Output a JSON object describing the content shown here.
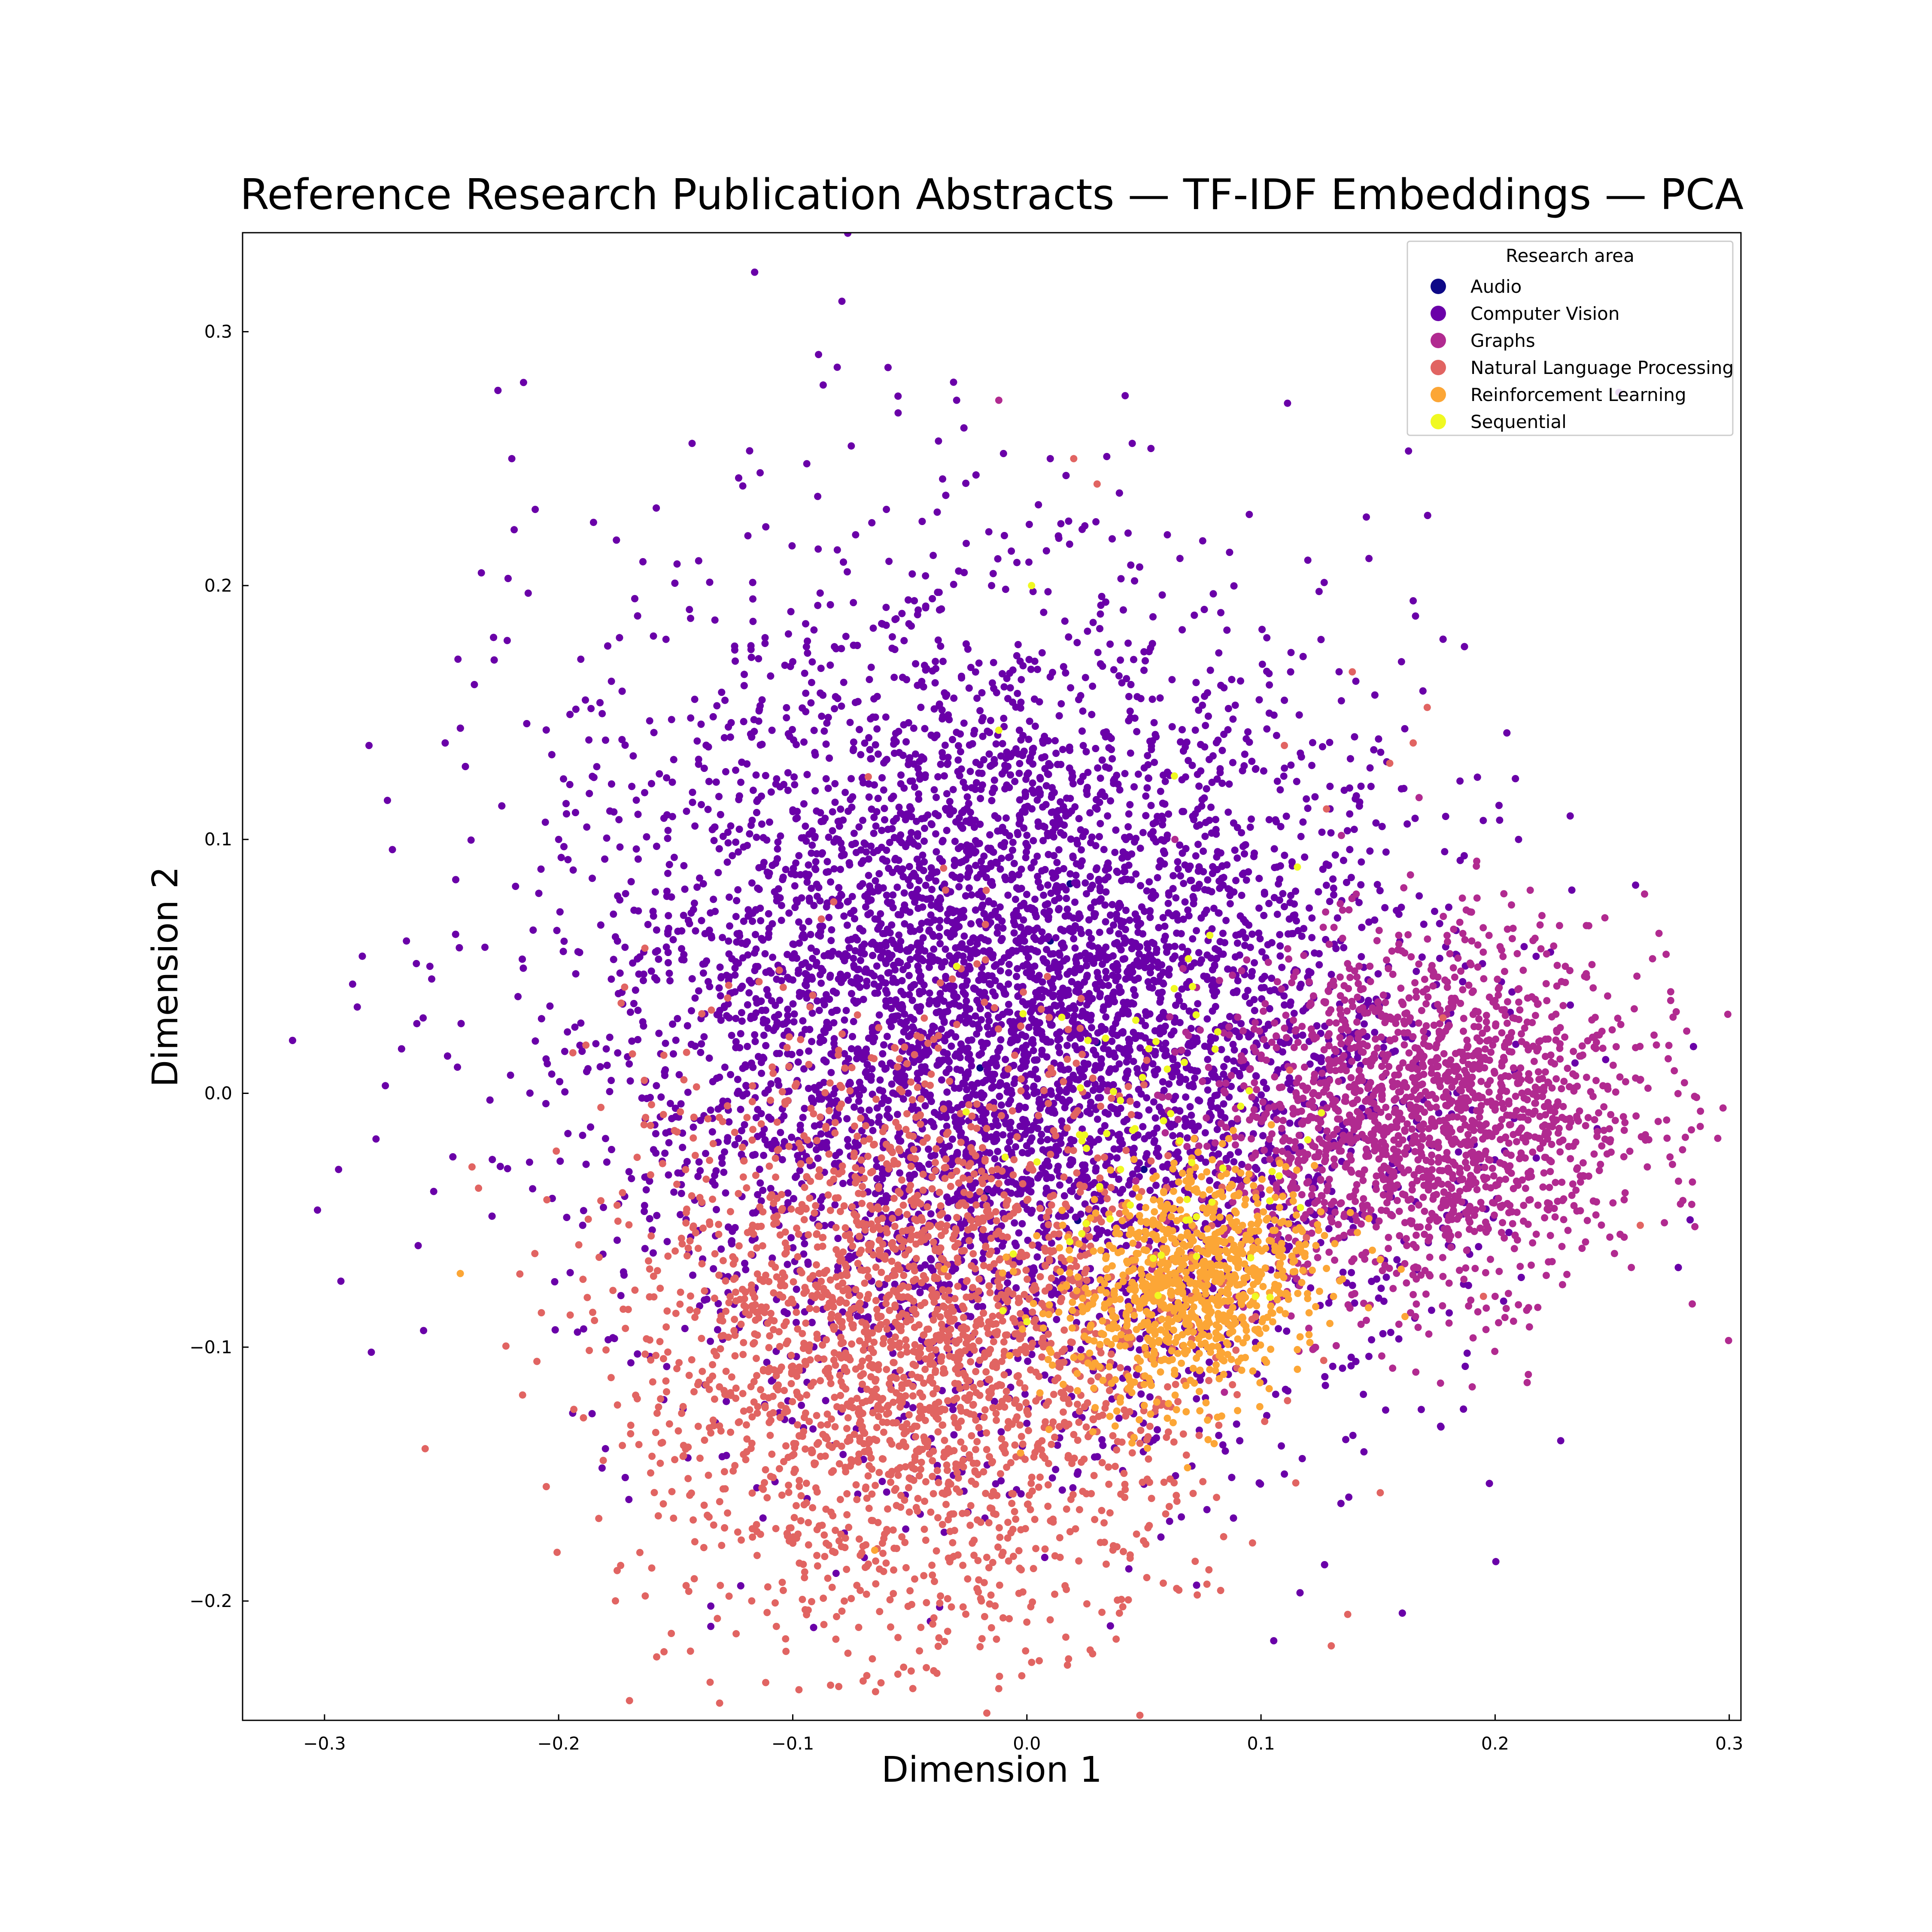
{
  "chart_data": {
    "type": "scatter",
    "title": "Reference Research Publication Abstracts — TF-IDF Embeddings — PCA",
    "xlabel": "Dimension 1",
    "ylabel": "Dimension 2",
    "xlim": [
      -0.335,
      0.305
    ],
    "ylim": [
      -0.247,
      0.339
    ],
    "xticks": [
      -0.3,
      -0.2,
      -0.1,
      0.0,
      0.1,
      0.2,
      0.3
    ],
    "xtick_labels": [
      "−0.3",
      "−0.2",
      "−0.1",
      "0.0",
      "0.1",
      "0.2",
      "0.3"
    ],
    "yticks": [
      -0.2,
      -0.1,
      0.0,
      0.1,
      0.2,
      0.3
    ],
    "ytick_labels": [
      "−0.2",
      "−0.1",
      "0.0",
      "0.1",
      "0.2",
      "0.3"
    ],
    "grid": false,
    "legend": {
      "title": "Research area",
      "placement": "top-right"
    },
    "series": [
      {
        "name": "Audio",
        "color": "#0d0887",
        "count": 5,
        "center": [
          0.0,
          0.0
        ],
        "spread": [
          0.05,
          0.05
        ],
        "rotation": 0,
        "points": [
          [
            -0.02,
            0.01
          ],
          [
            0.05,
            -0.03
          ],
          [
            0.01,
            0.06
          ],
          [
            -0.06,
            -0.02
          ],
          [
            0.03,
            0.02
          ]
        ]
      },
      {
        "name": "Computer Vision",
        "color": "#6a00a8",
        "count": 9000,
        "center": [
          -0.01,
          0.03
        ],
        "spread": [
          0.085,
          0.075
        ],
        "rotation": -0.35,
        "points": [
          [
            -0.303,
            -0.046
          ],
          [
            -0.294,
            -0.03
          ],
          [
            -0.293,
            -0.074
          ],
          [
            -0.288,
            0.043
          ],
          [
            -0.286,
            0.034
          ],
          [
            -0.281,
            0.137
          ],
          [
            -0.28,
            -0.102
          ],
          [
            -0.278,
            -0.018
          ],
          [
            -0.274,
            0.003
          ],
          [
            -0.271,
            0.096
          ],
          [
            -0.265,
            0.06
          ],
          [
            -0.26,
            -0.06
          ],
          [
            -0.255,
            0.05
          ],
          [
            -0.243,
            0.171
          ],
          [
            -0.236,
            0.161
          ],
          [
            -0.233,
            0.205
          ],
          [
            -0.22,
            0.25
          ],
          [
            -0.219,
            0.222
          ],
          [
            -0.215,
            0.28
          ],
          [
            -0.213,
            0.197
          ],
          [
            -0.21,
            0.23
          ],
          [
            -0.2,
            0.1
          ],
          [
            -0.194,
            -0.126
          ],
          [
            -0.18,
            -0.14
          ],
          [
            -0.17,
            -0.16
          ],
          [
            -0.143,
            0.256
          ],
          [
            -0.135,
            -0.202
          ],
          [
            -0.135,
            -0.21
          ],
          [
            -0.1,
            0.17
          ],
          [
            -0.094,
            0.248
          ],
          [
            -0.089,
            0.291
          ],
          [
            -0.087,
            0.279
          ],
          [
            -0.081,
            0.286
          ],
          [
            -0.079,
            0.312
          ],
          [
            -0.075,
            0.255
          ],
          [
            -0.06,
            0.23
          ],
          [
            -0.055,
            0.268
          ],
          [
            -0.036,
            0.242
          ],
          [
            -0.03,
            0.273
          ],
          [
            -0.01,
            0.252
          ],
          [
            0.01,
            0.25
          ],
          [
            0.045,
            0.256
          ],
          [
            0.053,
            0.254
          ],
          [
            0.06,
            0.22
          ],
          [
            0.095,
            0.228
          ],
          [
            0.12,
            0.21
          ],
          [
            0.145,
            0.227
          ],
          [
            0.163,
            0.253
          ],
          [
            0.165,
            0.194
          ],
          [
            0.166,
            0.188
          ],
          [
            0.185,
            0.123
          ],
          [
            0.21,
            0.1
          ],
          [
            0.26,
            0.082
          ],
          [
            0.16,
            0.17
          ],
          [
            0.11,
            -0.15
          ],
          [
            0.05,
            -0.154
          ],
          [
            0.0,
            -0.13
          ]
        ]
      },
      {
        "name": "Graphs",
        "color": "#b12a90",
        "count": 1800,
        "center": [
          0.17,
          -0.01
        ],
        "spread": [
          0.045,
          0.035
        ],
        "rotation": 0.15,
        "points": [
          [
            0.275,
            0.04
          ],
          [
            0.276,
            0.03
          ],
          [
            0.27,
            0.063
          ],
          [
            0.265,
            -0.029
          ],
          [
            0.26,
            0.018
          ],
          [
            0.255,
            -0.025
          ],
          [
            0.25,
            0.025
          ],
          [
            0.245,
            -0.028
          ],
          [
            0.24,
            0.066
          ],
          [
            0.235,
            -0.01
          ],
          [
            0.23,
            0.05
          ],
          [
            0.225,
            0.058
          ],
          [
            0.22,
            0.07
          ],
          [
            0.215,
            0.08
          ],
          [
            -0.012,
            0.273
          ],
          [
            0.2,
            -0.08
          ],
          [
            0.19,
            0.06
          ],
          [
            0.18,
            -0.05
          ],
          [
            0.26,
            0.006
          ]
        ]
      },
      {
        "name": "Natural Language Processing",
        "color": "#e16462",
        "count": 2500,
        "center": [
          -0.05,
          -0.1
        ],
        "spread": [
          0.06,
          0.055
        ],
        "rotation": -0.6,
        "points": [
          [
            -0.257,
            -0.14
          ],
          [
            -0.237,
            -0.029
          ],
          [
            -0.175,
            -0.188
          ],
          [
            -0.163,
            -0.198
          ],
          [
            -0.155,
            -0.22
          ],
          [
            -0.107,
            -0.21
          ],
          [
            -0.079,
            -0.204
          ],
          [
            -0.078,
            -0.2
          ],
          [
            -0.02,
            -0.218
          ],
          [
            0.171,
            0.152
          ],
          [
            0.165,
            0.138
          ],
          [
            0.155,
            0.13
          ],
          [
            0.139,
            0.166
          ],
          [
            0.128,
            0.112
          ],
          [
            0.11,
            0.137
          ],
          [
            0.02,
            0.25
          ],
          [
            0.03,
            0.24
          ],
          [
            0.262,
            -0.052
          ],
          [
            0.195,
            -0.08
          ]
        ]
      },
      {
        "name": "Reinforcement Learning",
        "color": "#fca636",
        "count": 900,
        "center": [
          0.07,
          -0.075
        ],
        "spread": [
          0.028,
          0.022
        ],
        "rotation": 0.4,
        "points": [
          [
            -0.242,
            -0.071
          ],
          [
            0.115,
            -0.062
          ],
          [
            0.125,
            -0.078
          ],
          [
            0.09,
            -0.125
          ],
          [
            0.08,
            -0.138
          ],
          [
            0.06,
            -0.128
          ],
          [
            0.04,
            -0.12
          ],
          [
            0.105,
            -0.09
          ],
          [
            -0.065,
            -0.18
          ]
        ]
      },
      {
        "name": "Sequential",
        "color": "#f0f921",
        "count": 60,
        "center": [
          0.06,
          -0.02
        ],
        "spread": [
          0.035,
          0.04
        ],
        "rotation": 0,
        "points": [
          [
            0.002,
            0.2
          ],
          [
            -0.012,
            0.143
          ],
          [
            0.063,
            0.125
          ],
          [
            0.069,
            0.053
          ],
          [
            0.095,
            0.001
          ],
          [
            0.068,
            -0.05
          ],
          [
            0.054,
            -0.065
          ],
          [
            -0.03,
            0.05
          ],
          [
            0.0,
            -0.09
          ],
          [
            0.04,
            -0.03
          ]
        ]
      }
    ]
  }
}
